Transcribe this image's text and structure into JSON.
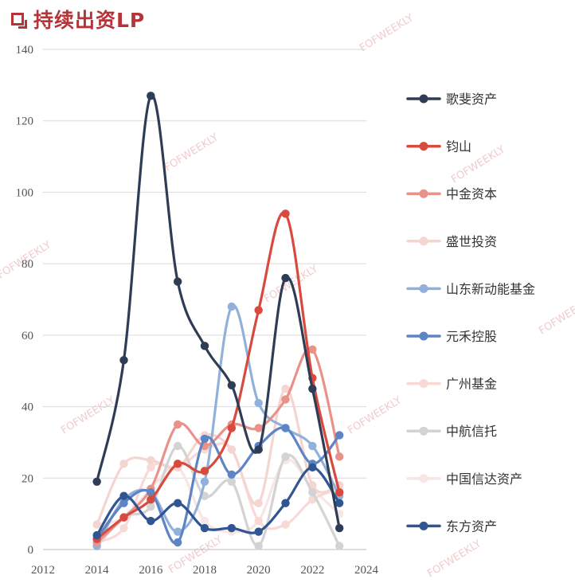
{
  "chart_data": {
    "type": "line",
    "title": "持续出资LP",
    "xlabel": "",
    "ylabel": "",
    "xlim": [
      2012,
      2024
    ],
    "ylim": [
      0,
      140
    ],
    "x_ticks": [
      2012,
      2014,
      2016,
      2018,
      2020,
      2022,
      2024
    ],
    "y_ticks": [
      0,
      20,
      40,
      60,
      80,
      100,
      120,
      140
    ],
    "grid": true,
    "legend_position": "right",
    "series": [
      {
        "name": "歌斐资产",
        "color": "#2e3d55",
        "x": [
          2014,
          2015,
          2016,
          2017,
          2018,
          2019,
          2020,
          2021,
          2022,
          2023
        ],
        "y": [
          19,
          53,
          127,
          75,
          57,
          46,
          28,
          76,
          45,
          6
        ]
      },
      {
        "name": "钧山",
        "color": "#d94a3e",
        "x": [
          2014,
          2015,
          2016,
          2017,
          2018,
          2019,
          2020,
          2021,
          2022,
          2023
        ],
        "y": [
          3,
          9,
          14,
          24,
          22,
          34,
          67,
          94,
          48,
          16
        ]
      },
      {
        "name": "中金资本",
        "color": "#e8928a",
        "x": [
          2014,
          2015,
          2016,
          2017,
          2018,
          2019,
          2020,
          2021,
          2022,
          2023
        ],
        "y": [
          2,
          9,
          17,
          35,
          29,
          35,
          34,
          42,
          56,
          26
        ]
      },
      {
        "name": "盛世投资",
        "color": "#f5d5d0",
        "x": [
          2014,
          2015,
          2016,
          2017,
          2018,
          2019,
          2020,
          2021,
          2022,
          2023
        ],
        "y": [
          7,
          24,
          25,
          23,
          32,
          28,
          13,
          45,
          18,
          18
        ]
      },
      {
        "name": "山东新动能基金",
        "color": "#92b1da",
        "x": [
          2014,
          2015,
          2016,
          2017,
          2018,
          2019,
          2020,
          2021,
          2022,
          2023
        ],
        "y": [
          1,
          14,
          16,
          5,
          19,
          68,
          41,
          34,
          29,
          15
        ]
      },
      {
        "name": "元禾控股",
        "color": "#5d84c5",
        "x": [
          2014,
          2015,
          2016,
          2017,
          2018,
          2019,
          2020,
          2021,
          2022,
          2023
        ],
        "y": [
          3,
          13,
          16,
          2,
          31,
          21,
          29,
          34,
          24,
          32
        ]
      },
      {
        "name": "广州基金",
        "color": "#f7dad6",
        "x": [
          2014,
          2015,
          2016,
          2017,
          2018,
          2019,
          2020,
          2021,
          2022,
          2023
        ],
        "y": [
          2,
          6,
          23,
          23,
          28,
          28,
          8,
          7,
          14,
          17
        ]
      },
      {
        "name": "中航信托",
        "color": "#d3d3d3",
        "x": [
          2014,
          2015,
          2016,
          2017,
          2018,
          2019,
          2020,
          2021,
          2022,
          2023
        ],
        "y": [
          1,
          9,
          12,
          29,
          15,
          19,
          1,
          26,
          16,
          1
        ]
      },
      {
        "name": "中国信达资产",
        "color": "#f8e6e4",
        "x": [
          2014,
          2015,
          2016,
          2017,
          2018,
          2019,
          2020,
          2021,
          2022,
          2023
        ],
        "y": [
          7,
          9,
          17,
          23,
          8,
          5,
          8,
          25,
          17,
          10
        ]
      },
      {
        "name": "东方资产",
        "color": "#2f5592",
        "x": [
          2014,
          2015,
          2016,
          2017,
          2018,
          2019,
          2020,
          2021,
          2022,
          2023
        ],
        "y": [
          4,
          15,
          8,
          13,
          6,
          6,
          5,
          13,
          23,
          13
        ]
      }
    ]
  },
  "watermark": "FOFWEEKLY"
}
